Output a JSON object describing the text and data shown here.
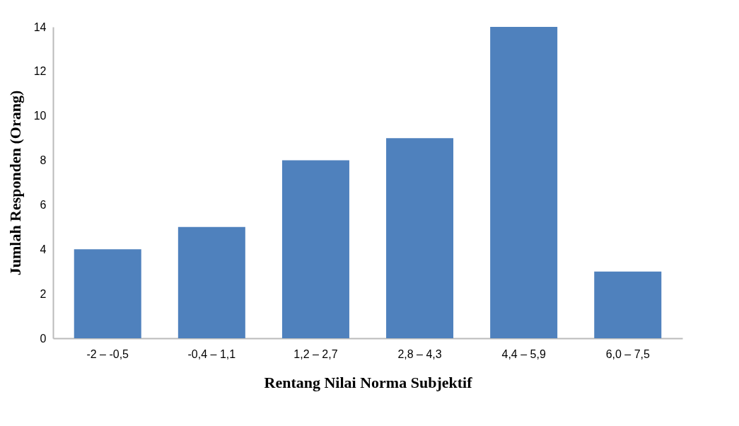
{
  "chart_data": {
    "type": "bar",
    "xlabel": "Rentang Nilai  Norma  Subjektif",
    "ylabel": "Jumlah Responden (Orang)",
    "categories": [
      "-2 – -0,5",
      "-0,4 – 1,1",
      "1,2 – 2,7",
      "2,8 – 4,3",
      "4,4 – 5,9",
      "6,0 – 7,5"
    ],
    "values": [
      4,
      5,
      8,
      9,
      14,
      3
    ],
    "color": "#4f81bd",
    "ylim": [
      0,
      14
    ],
    "yticks": [
      0,
      2,
      4,
      6,
      8,
      10,
      12,
      14
    ],
    "grid": false
  }
}
